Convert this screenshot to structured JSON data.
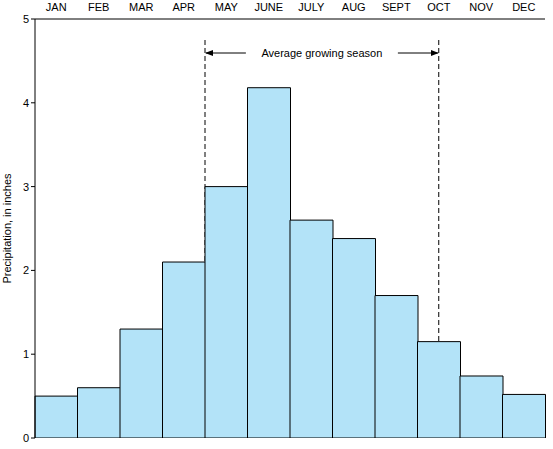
{
  "chart_data": {
    "type": "bar",
    "y_label": "Precipitation, in inches",
    "annotation": "Average growing season",
    "categories": [
      "JAN",
      "FEB",
      "MAR",
      "APR",
      "MAY",
      "JUNE",
      "JULY",
      "AUG",
      "SEPT",
      "OCT",
      "NOV",
      "DEC"
    ],
    "values": [
      0.5,
      0.6,
      1.3,
      2.1,
      3.0,
      4.18,
      2.6,
      2.38,
      1.7,
      1.15,
      0.74,
      0.52
    ],
    "color": "#b3e3f8",
    "ylim": [
      0,
      5
    ],
    "yticks": [
      0,
      1,
      2,
      3,
      4,
      5
    ],
    "grid": false
  }
}
